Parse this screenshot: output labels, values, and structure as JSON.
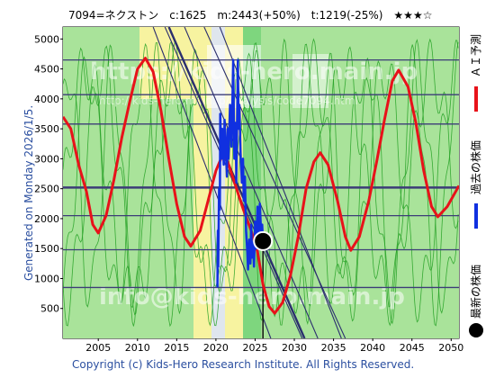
{
  "header": {
    "title": "7094=ネクストン　c:1625　m:2443(+50%)　t:1219(-25%)　★★★☆"
  },
  "side": {
    "generated": "Generated on Monday 2026/1/5.",
    "legend_ai": "ＡＩ予測",
    "legend_past": "過去の株価",
    "legend_latest": "最新の株価"
  },
  "footer": {
    "copyright": "Copyright (c) Kids-Hero Research Institute. All Rights Reserved."
  },
  "watermark": {
    "top": "https://kids-hero.main.jp",
    "middle": "http://kids-hero.main.jp/analysis/code7094.html",
    "bottom": "info@kids-hero.main.jp"
  },
  "colors": {
    "ai_line": "#e8121a",
    "past_line": "#1030e0",
    "green_band": "#7ed67e",
    "green_line": "#22a022",
    "yellow_band": "#f7f3a0",
    "hline": "#3c3c78",
    "diag": "#2b2f6e",
    "latest_dot": "#000000"
  },
  "chart_data": {
    "type": "line",
    "x_range": [
      2000.5,
      2051
    ],
    "y_range": [
      0,
      5200
    ],
    "xticks": [
      2005,
      2010,
      2015,
      2020,
      2025,
      2030,
      2035,
      2040,
      2045,
      2050
    ],
    "yticks": [
      500,
      1000,
      1500,
      2000,
      2500,
      3000,
      3500,
      4000,
      4500,
      5000
    ],
    "horizontal_lines": [
      850,
      1480,
      2050,
      2520,
      3580,
      4070,
      4650
    ],
    "current_marker": {
      "x": 2026.0,
      "y": 1625
    },
    "series": [
      {
        "name": "ＡＩ予測",
        "points": [
          [
            2000.5,
            3700
          ],
          [
            2001.5,
            3500
          ],
          [
            2002.5,
            2900
          ],
          [
            2003.5,
            2450
          ],
          [
            2004.3,
            1900
          ],
          [
            2005,
            1760
          ],
          [
            2006,
            2050
          ],
          [
            2007,
            2650
          ],
          [
            2008,
            3350
          ],
          [
            2009,
            3950
          ],
          [
            2010,
            4500
          ],
          [
            2011,
            4680
          ],
          [
            2012,
            4450
          ],
          [
            2013,
            3800
          ],
          [
            2014,
            3000
          ],
          [
            2015,
            2250
          ],
          [
            2016,
            1700
          ],
          [
            2016.8,
            1540
          ],
          [
            2018,
            1800
          ],
          [
            2019,
            2300
          ],
          [
            2020,
            2800
          ],
          [
            2020.8,
            3050
          ],
          [
            2021.5,
            2950
          ],
          [
            2022.5,
            2550
          ],
          [
            2023.5,
            2150
          ],
          [
            2024.5,
            1800
          ],
          [
            2025.3,
            1450
          ],
          [
            2026,
            900
          ],
          [
            2026.8,
            530
          ],
          [
            2027.5,
            420
          ],
          [
            2028.5,
            600
          ],
          [
            2029.5,
            1050
          ],
          [
            2030.5,
            1700
          ],
          [
            2031.5,
            2500
          ],
          [
            2032.5,
            2950
          ],
          [
            2033.3,
            3100
          ],
          [
            2034.3,
            2900
          ],
          [
            2035.5,
            2300
          ],
          [
            2036.5,
            1700
          ],
          [
            2037.2,
            1470
          ],
          [
            2038.3,
            1700
          ],
          [
            2039.5,
            2300
          ],
          [
            2040.5,
            2950
          ],
          [
            2041.5,
            3650
          ],
          [
            2042.5,
            4300
          ],
          [
            2043.3,
            4480
          ],
          [
            2044.5,
            4200
          ],
          [
            2045.5,
            3600
          ],
          [
            2046.5,
            2800
          ],
          [
            2047.5,
            2200
          ],
          [
            2048.3,
            2030
          ],
          [
            2049.5,
            2200
          ],
          [
            2051,
            2550
          ]
        ]
      },
      {
        "name": "過去の株価",
        "points": [
          [
            2020.2,
            850
          ],
          [
            2020.25,
            1800
          ],
          [
            2020.3,
            1200
          ],
          [
            2020.4,
            2500
          ],
          [
            2020.5,
            2150
          ],
          [
            2020.55,
            3750
          ],
          [
            2020.7,
            3000
          ],
          [
            2020.8,
            3500
          ],
          [
            2021.0,
            2900
          ],
          [
            2021.1,
            3650
          ],
          [
            2021.25,
            3200
          ],
          [
            2021.4,
            2700
          ],
          [
            2021.5,
            3500
          ],
          [
            2021.6,
            3000
          ],
          [
            2021.8,
            3900
          ],
          [
            2022.0,
            3200
          ],
          [
            2022.2,
            4650
          ],
          [
            2022.35,
            3000
          ],
          [
            2022.5,
            3600
          ],
          [
            2022.6,
            2600
          ],
          [
            2022.8,
            4650
          ],
          [
            2022.9,
            3500
          ],
          [
            2023.0,
            3900
          ],
          [
            2023.15,
            3100
          ],
          [
            2023.3,
            2600
          ],
          [
            2023.45,
            3000
          ],
          [
            2023.55,
            2300
          ],
          [
            2023.7,
            2700
          ],
          [
            2023.85,
            1800
          ],
          [
            2024.0,
            1450
          ],
          [
            2024.1,
            1150
          ],
          [
            2024.25,
            1650
          ],
          [
            2024.4,
            1250
          ],
          [
            2024.5,
            1900
          ],
          [
            2024.6,
            1350
          ],
          [
            2024.75,
            1600
          ],
          [
            2024.85,
            1200
          ],
          [
            2025.0,
            1950
          ],
          [
            2025.15,
            1500
          ],
          [
            2025.3,
            2200
          ],
          [
            2025.45,
            1750
          ],
          [
            2025.6,
            2250
          ],
          [
            2025.75,
            1800
          ],
          [
            2025.9,
            1900
          ],
          [
            2026.0,
            1625
          ]
        ]
      },
      {
        "name": "最新の株価",
        "points": [
          [
            2026.0,
            1625
          ]
        ]
      }
    ]
  }
}
